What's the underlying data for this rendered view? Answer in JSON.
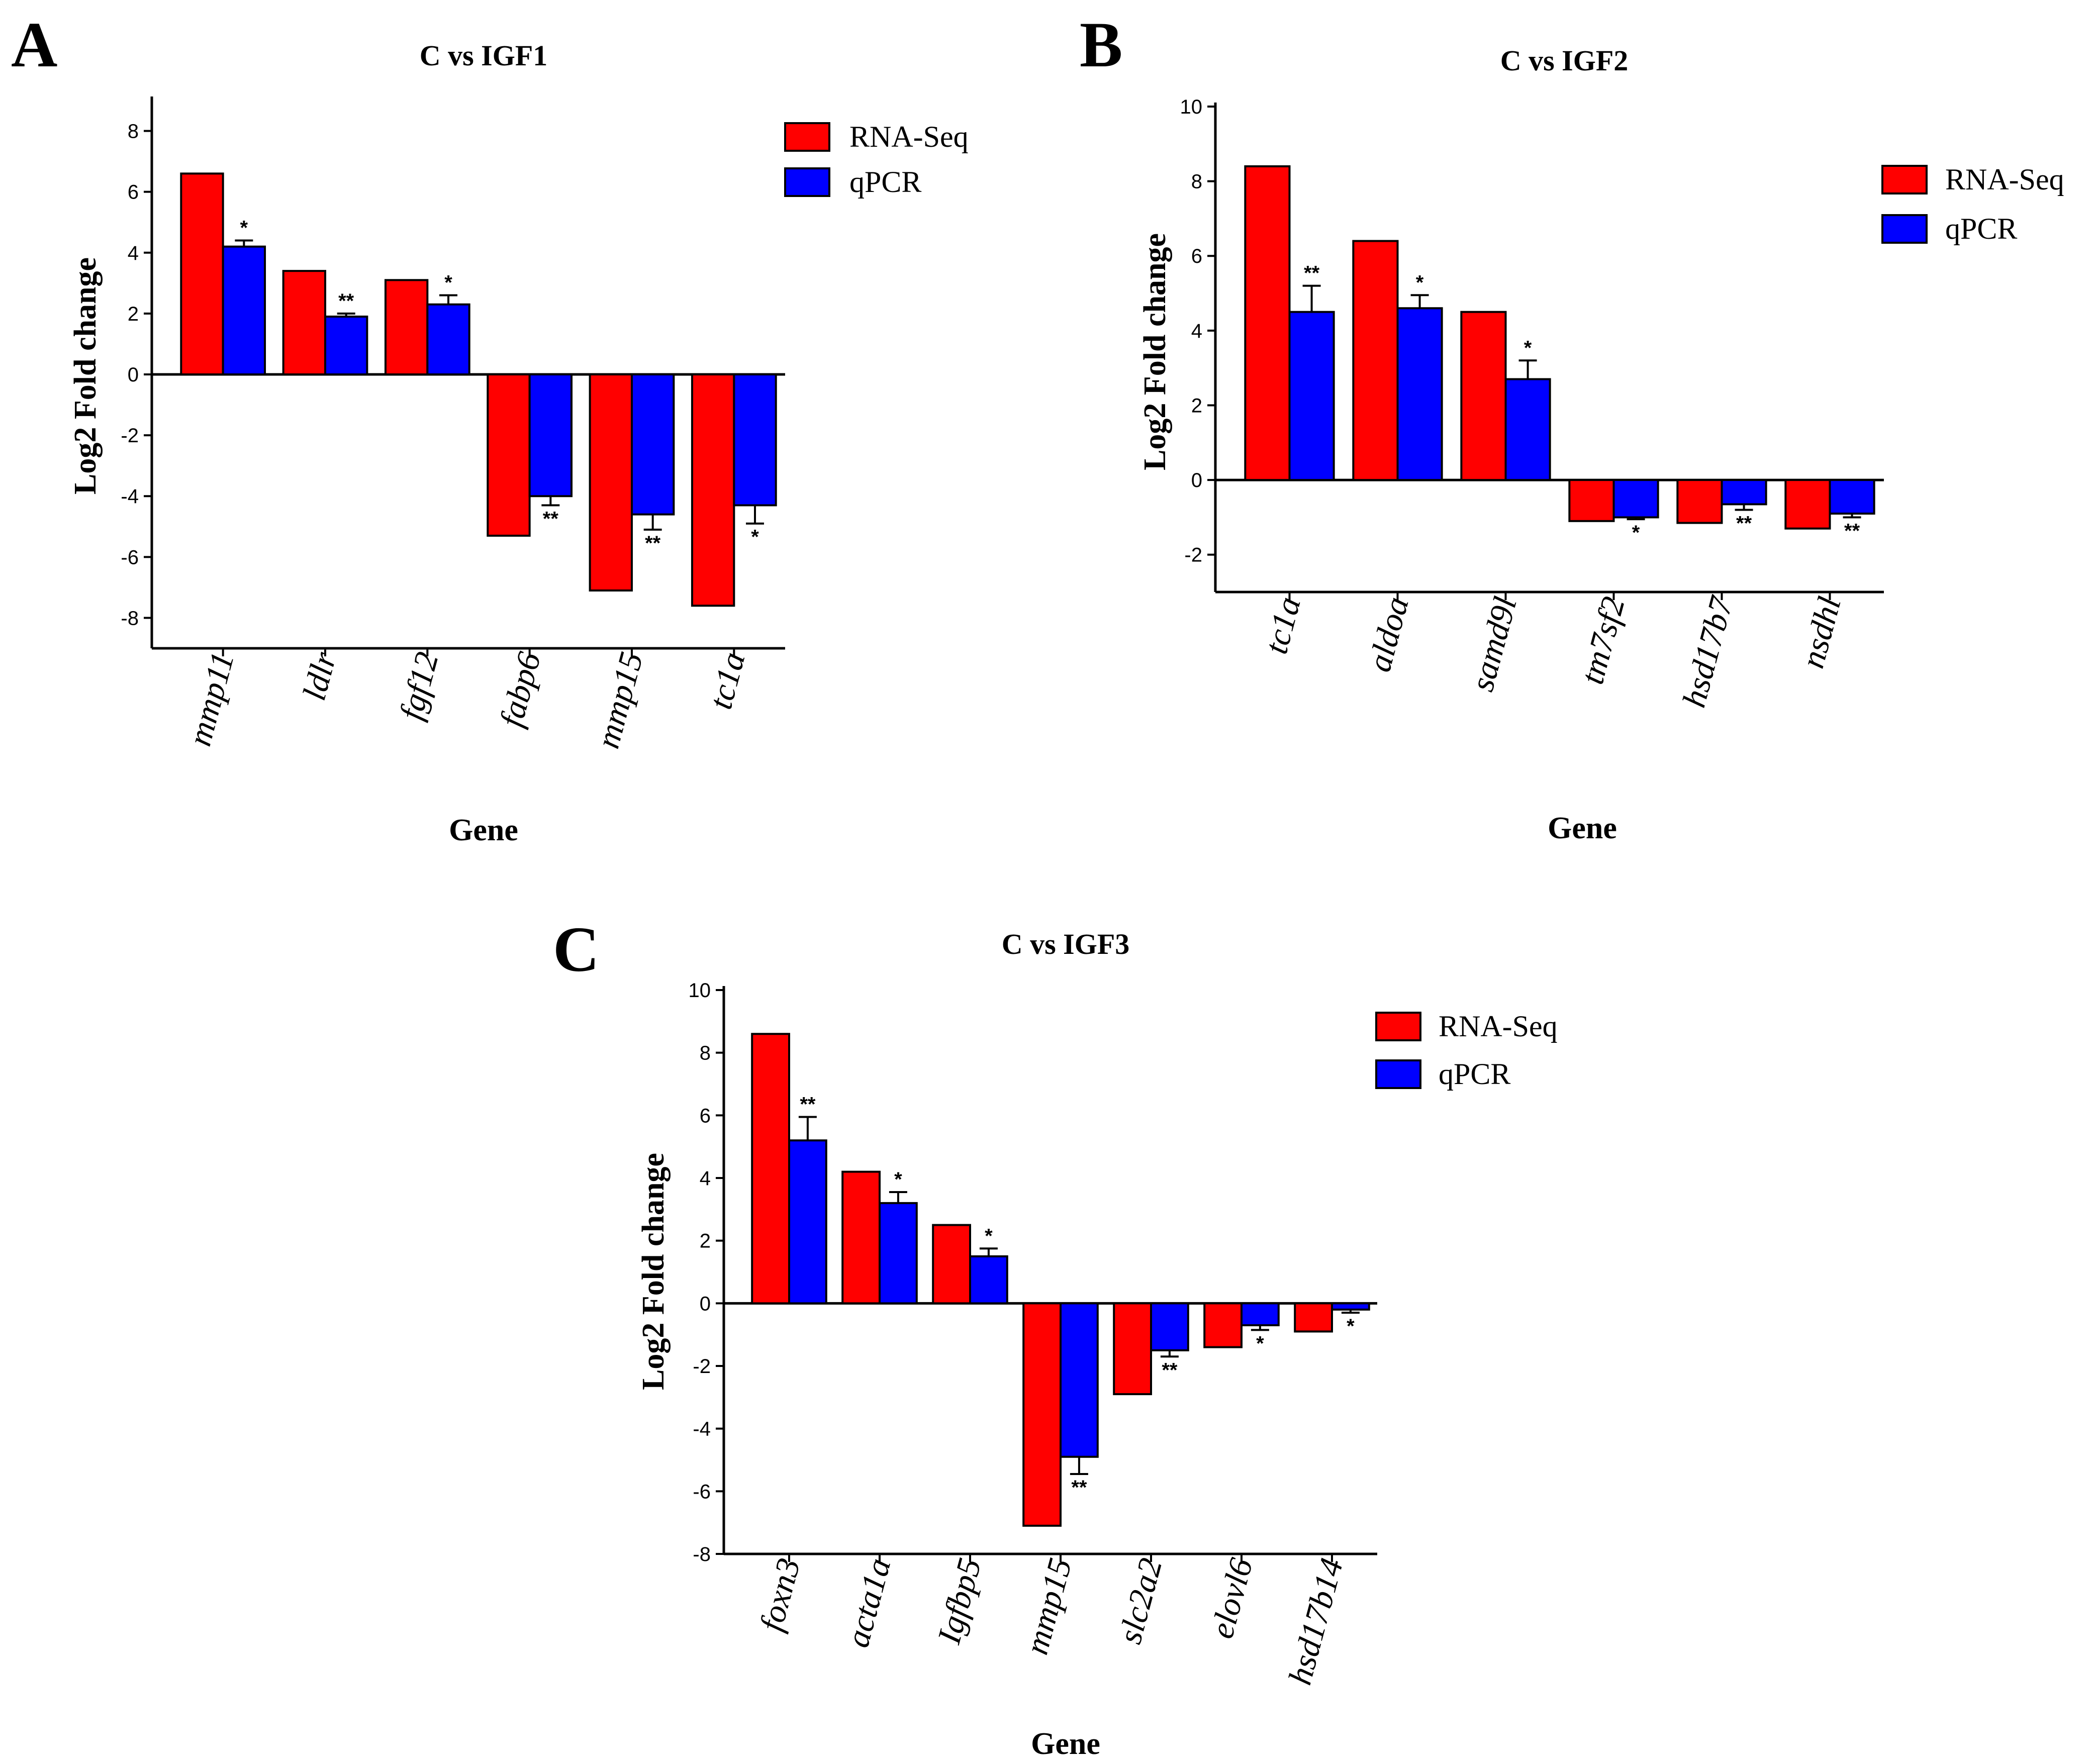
{
  "colors": {
    "rna_seq": "#ff0000",
    "qpcr": "#0000ff",
    "axis": "#000000"
  },
  "chart_data": [
    {
      "panel": "A",
      "type": "bar",
      "title": "C vs IGF1",
      "xlabel": "Gene",
      "ylabel": "Log2 Fold change",
      "ylim": [
        -9,
        9
      ],
      "yticks": [
        8,
        6,
        4,
        2,
        0,
        -2,
        -4,
        -6,
        -8
      ],
      "categories": [
        "mmp11",
        "ldlr",
        "fgf12",
        "fabp6",
        "mmp15",
        "tc1a"
      ],
      "legend_position": "top-right",
      "series": [
        {
          "name": "RNA-Seq",
          "color": "#ff0000",
          "values": [
            6.6,
            3.4,
            3.1,
            -5.3,
            -7.1,
            -7.6
          ]
        },
        {
          "name": "qPCR",
          "color": "#0000ff",
          "values": [
            4.2,
            1.9,
            2.3,
            -4.0,
            -4.6,
            -4.3
          ],
          "errors": [
            0.2,
            0.1,
            0.3,
            0.3,
            0.5,
            0.6
          ],
          "significance": [
            "*",
            "**",
            "*",
            "**",
            "**",
            "*"
          ]
        }
      ]
    },
    {
      "panel": "B",
      "type": "bar",
      "title": "C vs IGF2",
      "xlabel": "Gene",
      "ylabel": "Log2 Fold change",
      "ylim": [
        -3,
        10
      ],
      "yticks": [
        10,
        8,
        6,
        4,
        2,
        0,
        -2
      ],
      "categories": [
        "tc1a",
        "aldoa",
        "samd9l",
        "tm7sf2",
        "hsd17b7",
        "nsdhl"
      ],
      "legend_position": "top-right",
      "series": [
        {
          "name": "RNA-Seq",
          "color": "#ff0000",
          "values": [
            8.4,
            6.4,
            4.5,
            -1.1,
            -1.15,
            -1.3
          ]
        },
        {
          "name": "qPCR",
          "color": "#0000ff",
          "values": [
            4.5,
            4.6,
            2.7,
            -1.0,
            -0.65,
            -0.9
          ],
          "errors": [
            0.7,
            0.35,
            0.5,
            0.05,
            0.15,
            0.1
          ],
          "significance": [
            "**",
            "*",
            "*",
            "*",
            "**",
            "**"
          ]
        }
      ]
    },
    {
      "panel": "C",
      "type": "bar",
      "title": "C vs IGF3",
      "xlabel": "Gene",
      "ylabel": "Log2 Fold change",
      "ylim": [
        -8,
        10
      ],
      "yticks": [
        10,
        8,
        6,
        4,
        2,
        0,
        -2,
        -4,
        -6,
        -8
      ],
      "categories": [
        "foxn3",
        "acta1a",
        "Igfbp5",
        "mmp15",
        "slc2a2",
        "elovl6",
        "hsd17b14"
      ],
      "legend_position": "top-right",
      "series": [
        {
          "name": "RNA-Seq",
          "color": "#ff0000",
          "values": [
            8.6,
            4.2,
            2.5,
            -7.1,
            -2.9,
            -1.4,
            -0.9
          ]
        },
        {
          "name": "qPCR",
          "color": "#0000ff",
          "values": [
            5.2,
            3.2,
            1.5,
            -4.9,
            -1.5,
            -0.7,
            -0.2
          ],
          "errors": [
            0.75,
            0.35,
            0.25,
            0.55,
            0.2,
            0.15,
            0.1
          ],
          "significance": [
            "**",
            "*",
            "*",
            "**",
            "**",
            "*",
            "*"
          ]
        }
      ]
    }
  ]
}
